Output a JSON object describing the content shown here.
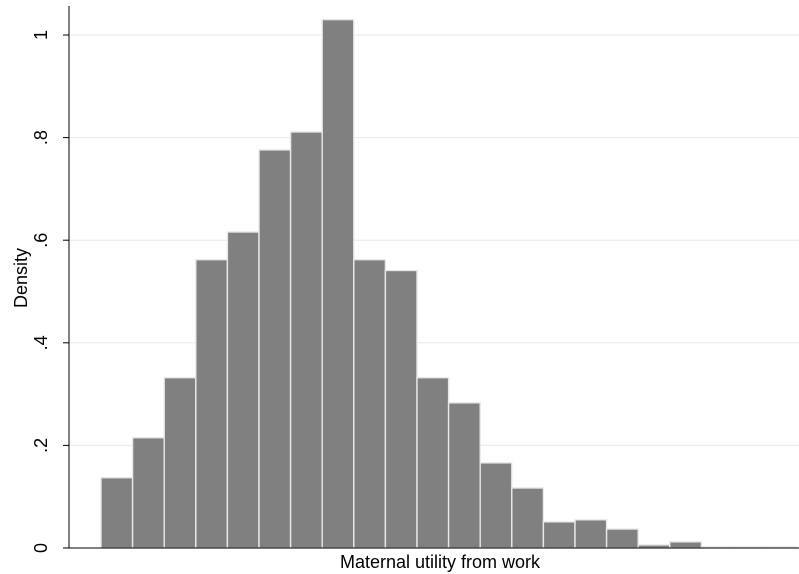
{
  "chart_data": {
    "type": "bar",
    "subtype": "histogram",
    "title": "",
    "xlabel": "Maternal utility from work",
    "ylabel": "Density",
    "ylim": [
      0,
      1.05
    ],
    "yticks": [
      0,
      0.2,
      0.4,
      0.6,
      0.8,
      1
    ],
    "ytick_labels": [
      "0",
      ".2",
      ".4",
      ".6",
      ".8",
      "1"
    ],
    "grid": true,
    "legend": "none",
    "bin_count": 22,
    "values": [
      0.137,
      0.215,
      0.332,
      0.562,
      0.616,
      0.776,
      0.811,
      1.03,
      0.562,
      0.541,
      0.332,
      0.283,
      0.166,
      0.117,
      0.051,
      0.055,
      0.037,
      0.006,
      0.012,
      0.002,
      0.002,
      0.002
    ],
    "colors": {
      "bar_fill": "#808080",
      "bar_edge": "#e8e8e8",
      "grid": "#eaeaea",
      "axis": "#000000"
    }
  }
}
